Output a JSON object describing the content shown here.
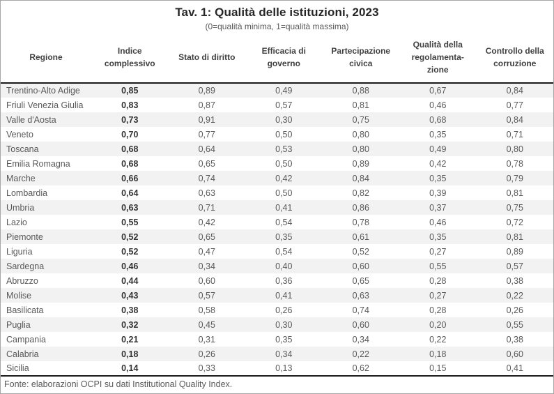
{
  "figure": {
    "title": "Tav. 1: Qualità delle istituzioni, 2023",
    "subtitle": "(0=qualità minima, 1=qualità massima)",
    "source_note": "Fonte: elaborazioni OCPI su dati Institutional Quality Index."
  },
  "colors": {
    "stripe_row": "#f2f2f2",
    "rule": "#1a1a1a",
    "outer_border": "#a6a6a6",
    "body_text": "#595959",
    "header_text": "#404040",
    "bold_value_text": "#333333"
  },
  "chart_data": {
    "type": "table",
    "title": "Tav. 1: Qualità delle istituzioni, 2023",
    "subtitle": "(0=qualità minima, 1=qualità massima)",
    "decimal_separator": ",",
    "value_range_note": "0=qualità minima, 1=qualità massima",
    "columns": [
      "Regione",
      "Indice complessivo",
      "Stato di diritto",
      "Efficacia di governo",
      "Partecipazione civica",
      "Qualità della regolamenta- zione",
      "Controllo della corruzione"
    ],
    "rows": [
      [
        "Trentino-Alto Adige",
        "0,85",
        "0,89",
        "0,49",
        "0,88",
        "0,67",
        "0,84"
      ],
      [
        "Friuli Venezia Giulia",
        "0,83",
        "0,87",
        "0,57",
        "0,81",
        "0,46",
        "0,77"
      ],
      [
        "Valle d'Aosta",
        "0,73",
        "0,91",
        "0,30",
        "0,75",
        "0,68",
        "0,84"
      ],
      [
        "Veneto",
        "0,70",
        "0,77",
        "0,50",
        "0,80",
        "0,35",
        "0,71"
      ],
      [
        "Toscana",
        "0,68",
        "0,64",
        "0,53",
        "0,80",
        "0,49",
        "0,80"
      ],
      [
        "Emilia Romagna",
        "0,68",
        "0,65",
        "0,50",
        "0,89",
        "0,42",
        "0,78"
      ],
      [
        "Marche",
        "0,66",
        "0,74",
        "0,42",
        "0,84",
        "0,35",
        "0,79"
      ],
      [
        "Lombardia",
        "0,64",
        "0,63",
        "0,50",
        "0,82",
        "0,39",
        "0,81"
      ],
      [
        "Umbria",
        "0,63",
        "0,71",
        "0,41",
        "0,86",
        "0,37",
        "0,75"
      ],
      [
        "Lazio",
        "0,55",
        "0,42",
        "0,54",
        "0,78",
        "0,46",
        "0,72"
      ],
      [
        "Piemonte",
        "0,52",
        "0,65",
        "0,35",
        "0,61",
        "0,35",
        "0,81"
      ],
      [
        "Liguria",
        "0,52",
        "0,47",
        "0,54",
        "0,52",
        "0,27",
        "0,89"
      ],
      [
        "Sardegna",
        "0,46",
        "0,34",
        "0,40",
        "0,60",
        "0,55",
        "0,57"
      ],
      [
        "Abruzzo",
        "0,44",
        "0,60",
        "0,36",
        "0,65",
        "0,28",
        "0,38"
      ],
      [
        "Molise",
        "0,43",
        "0,57",
        "0,41",
        "0,63",
        "0,27",
        "0,22"
      ],
      [
        "Basilicata",
        "0,38",
        "0,58",
        "0,26",
        "0,74",
        "0,28",
        "0,26"
      ],
      [
        "Puglia",
        "0,32",
        "0,45",
        "0,30",
        "0,60",
        "0,20",
        "0,55"
      ],
      [
        "Campania",
        "0,21",
        "0,31",
        "0,35",
        "0,34",
        "0,22",
        "0,38"
      ],
      [
        "Calabria",
        "0,18",
        "0,26",
        "0,34",
        "0,22",
        "0,18",
        "0,60"
      ],
      [
        "Sicilia",
        "0,14",
        "0,33",
        "0,13",
        "0,62",
        "0,15",
        "0,41"
      ]
    ]
  }
}
